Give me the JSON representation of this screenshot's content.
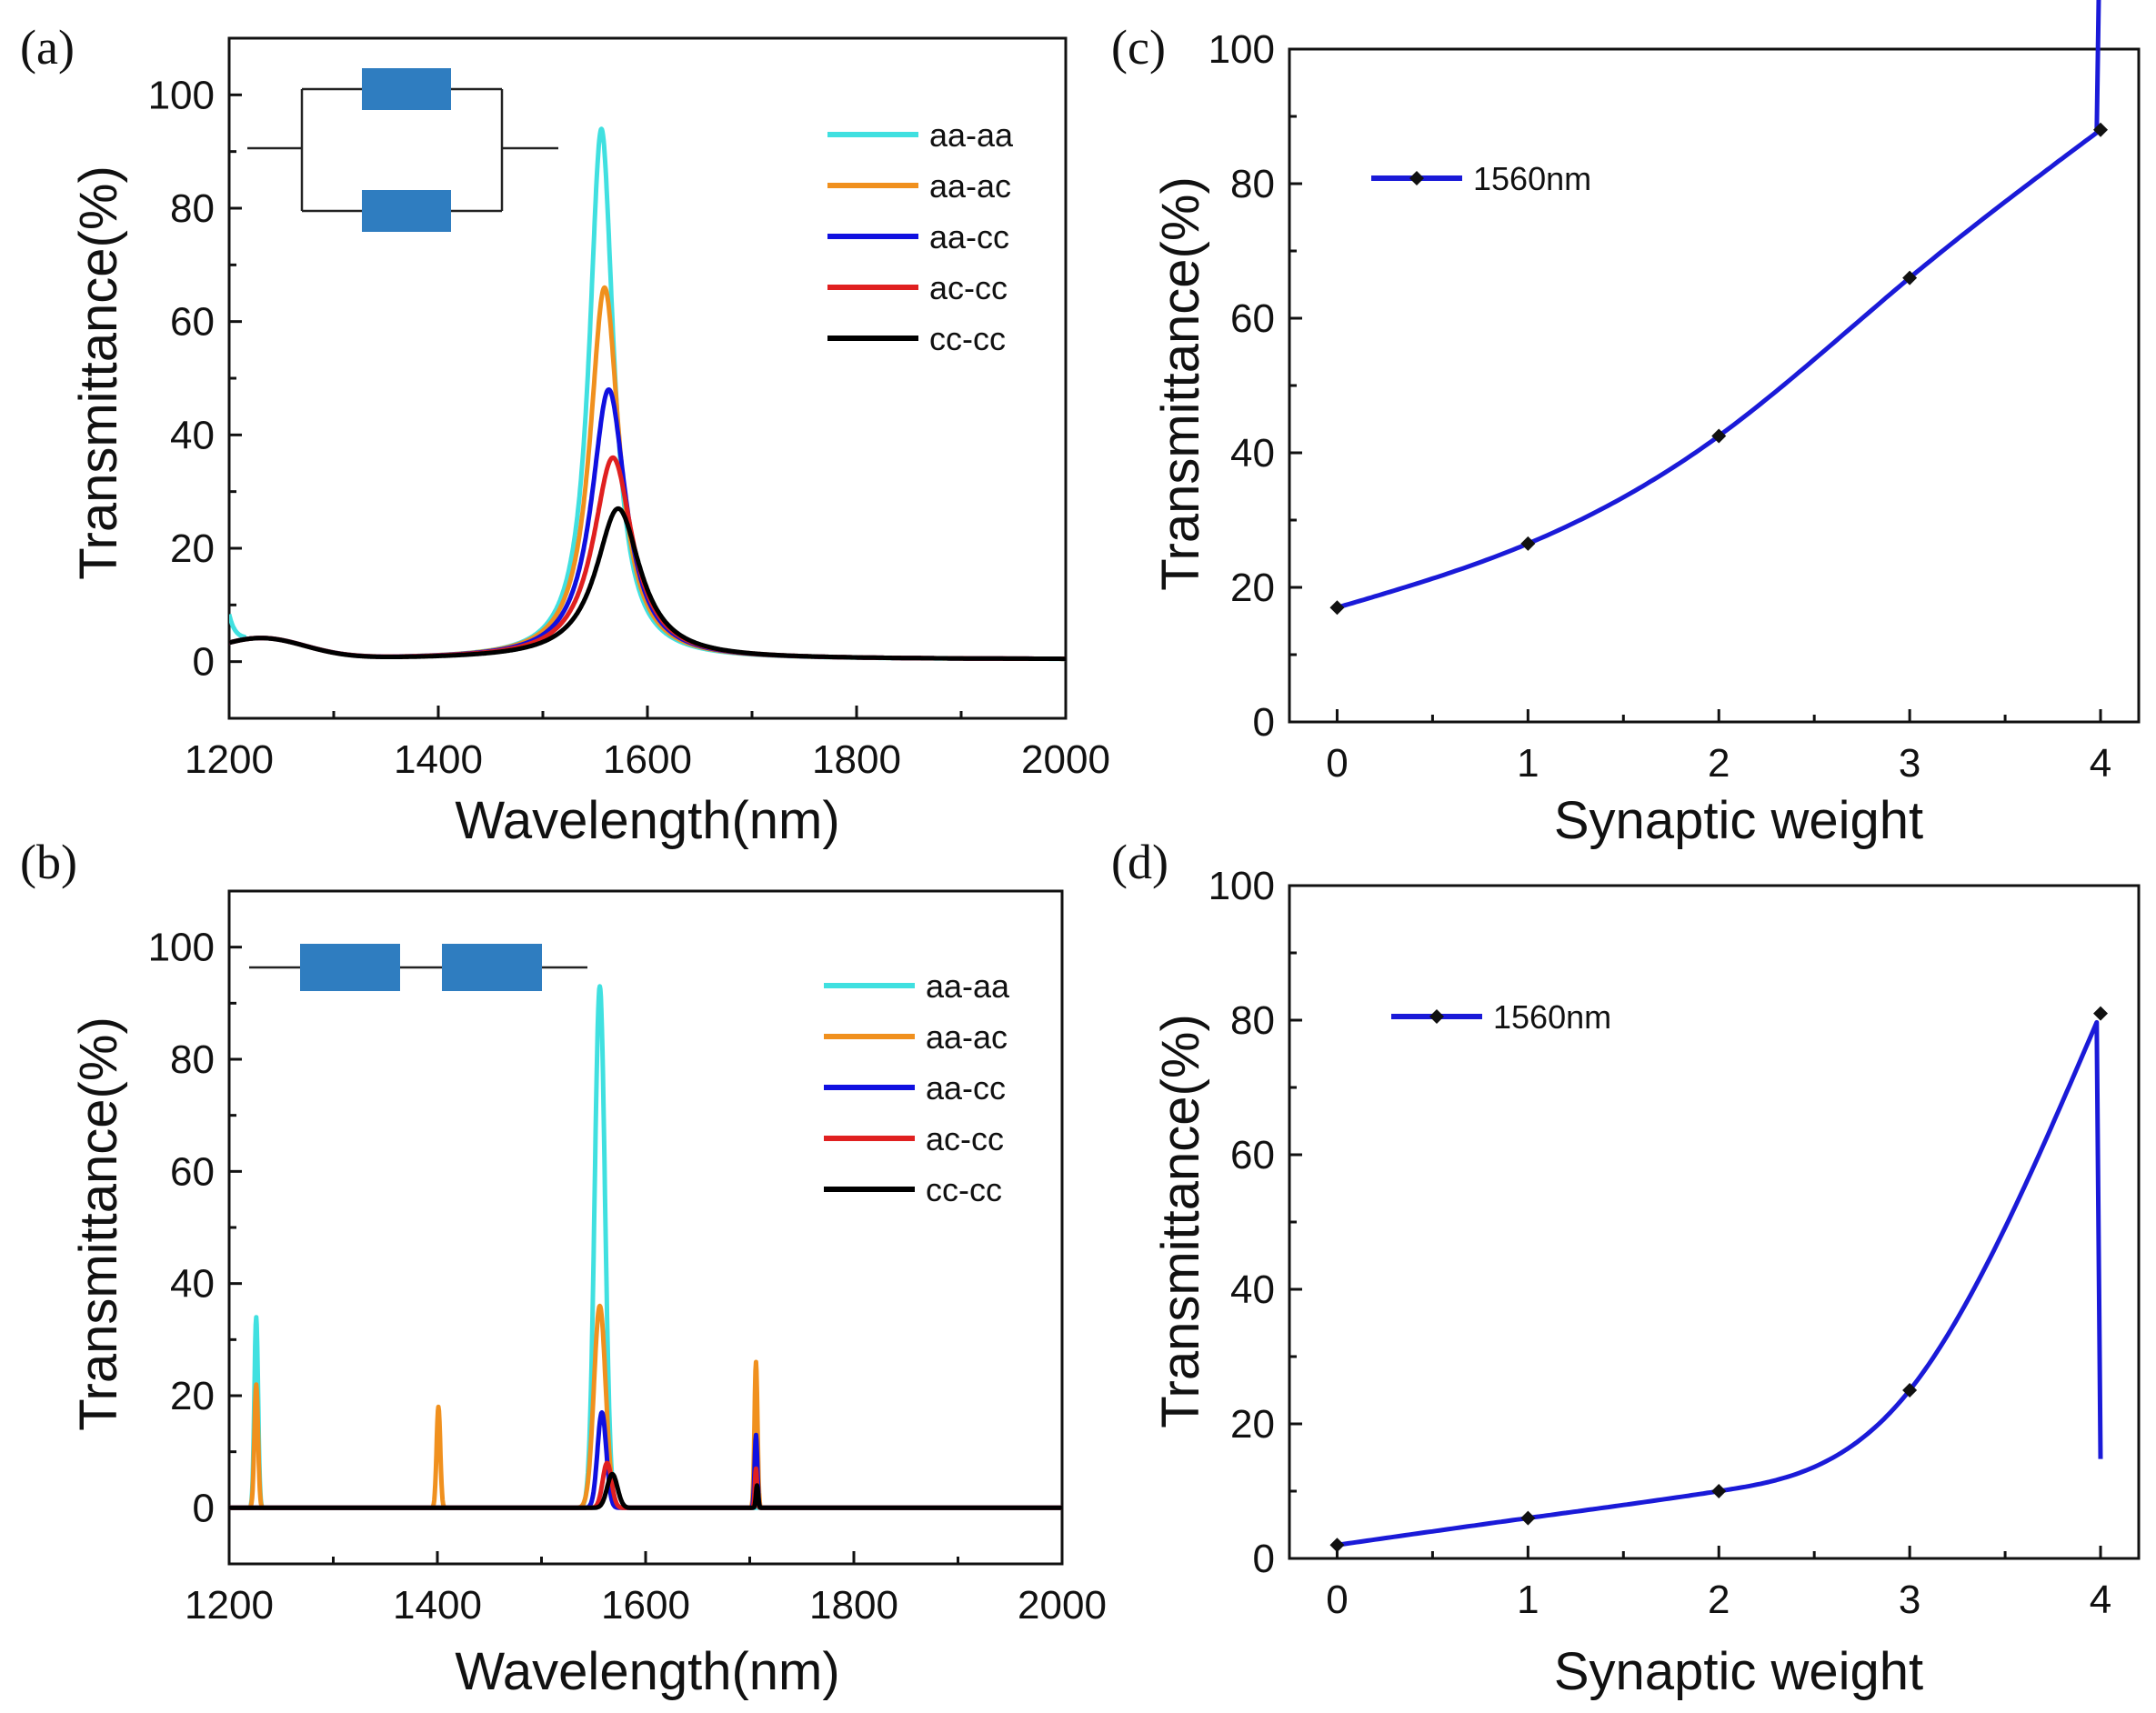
{
  "chart_data": [
    {
      "id": "a",
      "type": "line",
      "panel_label": "(a)",
      "xlabel": "Wavelength(nm)",
      "ylabel": "Transmittance(%)",
      "xlim": [
        1200,
        2000
      ],
      "ylim": [
        -10,
        110
      ],
      "xticks": [
        1200,
        1400,
        1600,
        1800,
        2000
      ],
      "yticks": [
        0,
        20,
        40,
        60,
        80,
        100
      ],
      "inset": "parallel",
      "legend_position": "top-right",
      "series": [
        {
          "name": "aa-aa",
          "color": "#40e0e0",
          "peak_x": 1556,
          "peak_y": 94,
          "width": 14,
          "baseline": "a"
        },
        {
          "name": "aa-ac",
          "color": "#f0901e",
          "peak_x": 1559,
          "peak_y": 66,
          "width": 17,
          "baseline": "a"
        },
        {
          "name": "aa-cc",
          "color": "#1010e0",
          "peak_x": 1563,
          "peak_y": 48,
          "width": 20,
          "baseline": "a"
        },
        {
          "name": "ac-cc",
          "color": "#e02020",
          "peak_x": 1567,
          "peak_y": 36,
          "width": 23,
          "baseline": "a"
        },
        {
          "name": "cc-cc",
          "color": "#000000",
          "peak_x": 1572,
          "peak_y": 27,
          "width": 26,
          "baseline": "a"
        }
      ]
    },
    {
      "id": "b",
      "type": "line",
      "panel_label": "(b)",
      "xlabel": "Wavelength(nm)",
      "ylabel": "Transmittance(%)",
      "xlim": [
        1200,
        2000
      ],
      "ylim": [
        -10,
        110
      ],
      "xticks": [
        1200,
        1400,
        1600,
        1800,
        2000
      ],
      "yticks": [
        0,
        20,
        40,
        60,
        80,
        100
      ],
      "inset": "series",
      "legend_position": "top-right",
      "series": [
        {
          "name": "aa-aa",
          "color": "#40e0e0",
          "peaks": [
            [
              1226,
              34,
              2.5
            ],
            [
              1556,
              93,
              7
            ]
          ]
        },
        {
          "name": "aa-ac",
          "color": "#f0901e",
          "peaks": [
            [
              1226,
              22,
              2.5
            ],
            [
              1401,
              18,
              2.5
            ],
            [
              1556,
              36,
              8
            ],
            [
              1706,
              26,
              2
            ]
          ]
        },
        {
          "name": "aa-cc",
          "color": "#1010e0",
          "peaks": [
            [
              1558,
              17,
              6
            ],
            [
              1706,
              13,
              1.8
            ]
          ]
        },
        {
          "name": "ac-cc",
          "color": "#e02020",
          "peaks": [
            [
              1563,
              8,
              6
            ],
            [
              1706,
              7,
              1.5
            ]
          ]
        },
        {
          "name": "cc-cc",
          "color": "#000000",
          "peaks": [
            [
              1568,
              6,
              7
            ],
            [
              1707,
              4,
              1.5
            ]
          ]
        }
      ]
    },
    {
      "id": "c",
      "type": "line",
      "panel_label": "(c)",
      "xlabel": "Synaptic weight",
      "ylabel": "Transmittance(%)",
      "xlim": [
        -0.25,
        4.2
      ],
      "ylim": [
        0,
        100
      ],
      "xticks": [
        0,
        1,
        2,
        3,
        4
      ],
      "yticks": [
        0,
        20,
        40,
        60,
        80,
        100
      ],
      "legend_position": "top-left",
      "series": [
        {
          "name": "1560nm",
          "color": "#1a1ad8",
          "x": [
            0,
            1,
            2,
            3,
            4
          ],
          "y": [
            17,
            26.5,
            42.5,
            66,
            88
          ]
        }
      ]
    },
    {
      "id": "d",
      "type": "line",
      "panel_label": "(d)",
      "xlabel": "Synaptic weight",
      "ylabel": "Transmittance(%)",
      "xlim": [
        -0.25,
        4.2
      ],
      "ylim": [
        0,
        100
      ],
      "xticks": [
        0,
        1,
        2,
        3,
        4
      ],
      "yticks": [
        0,
        20,
        40,
        60,
        80,
        100
      ],
      "legend_position": "top-left",
      "series": [
        {
          "name": "1560nm",
          "color": "#1a1ad8",
          "x": [
            0,
            1,
            2,
            3,
            4
          ],
          "y": [
            2,
            6,
            10,
            25,
            81
          ]
        }
      ]
    }
  ]
}
